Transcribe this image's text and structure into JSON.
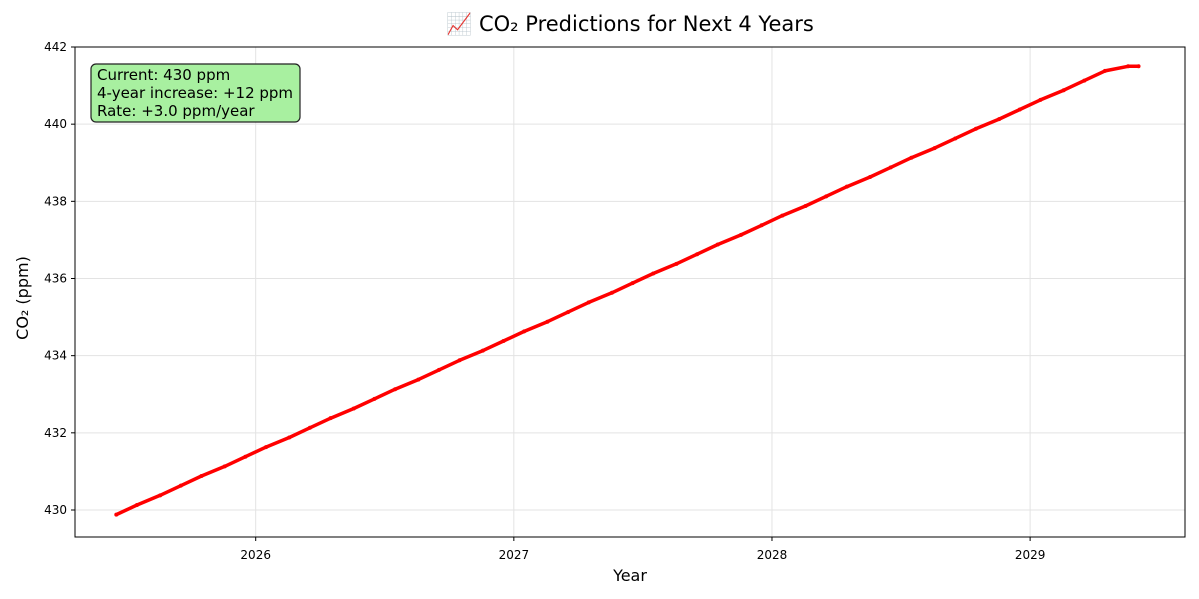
{
  "chart_data": {
    "type": "line",
    "title": "📈 CO₂ Predictions for Next 4 Years",
    "xlabel": "Year",
    "ylabel": "CO₂ (ppm)",
    "xlim": [
      2025.3,
      2029.6
    ],
    "ylim": [
      429.3,
      442.0
    ],
    "x_ticks": [
      2026,
      2027,
      2028,
      2029
    ],
    "x_tick_labels": [
      "2026",
      "2027",
      "2028",
      "2029"
    ],
    "y_ticks": [
      430,
      432,
      434,
      436,
      438,
      440,
      442
    ],
    "y_tick_labels": [
      "430",
      "432",
      "434",
      "436",
      "438",
      "440",
      "442"
    ],
    "grid": true,
    "series": [
      {
        "color": "#ff0000",
        "x": [
          2025.46,
          2025.54,
          2025.63,
          2025.71,
          2025.79,
          2025.88,
          2025.96,
          2026.04,
          2026.13,
          2026.21,
          2026.29,
          2026.38,
          2026.46,
          2026.54,
          2026.63,
          2026.71,
          2026.79,
          2026.88,
          2026.96,
          2027.04,
          2027.13,
          2027.21,
          2027.29,
          2027.38,
          2027.46,
          2027.54,
          2027.63,
          2027.71,
          2027.79,
          2027.88,
          2027.96,
          2028.04,
          2028.13,
          2028.21,
          2028.29,
          2028.38,
          2028.46,
          2028.54,
          2028.63,
          2028.71,
          2028.79,
          2028.88,
          2028.96,
          2029.04,
          2029.13,
          2029.21,
          2029.29,
          2029.38,
          2029.42
        ],
        "values": [
          429.88,
          430.13,
          430.38,
          430.63,
          430.88,
          431.13,
          431.38,
          431.63,
          431.88,
          432.13,
          432.38,
          432.63,
          432.88,
          433.13,
          433.38,
          433.63,
          433.88,
          434.13,
          434.38,
          434.63,
          434.88,
          435.13,
          435.38,
          435.63,
          435.88,
          436.13,
          436.38,
          436.63,
          436.88,
          437.13,
          437.38,
          437.63,
          437.88,
          438.13,
          438.38,
          438.63,
          438.88,
          439.13,
          439.38,
          439.63,
          439.88,
          440.13,
          440.38,
          440.63,
          440.88,
          441.13,
          441.38,
          441.5,
          441.5
        ]
      }
    ],
    "annotation": {
      "lines": [
        "Current: 430 ppm",
        "4-year increase: +12 ppm",
        "Rate: +3.0 ppm/year"
      ],
      "background": "#a8f0a0",
      "placement": "top-left"
    }
  }
}
